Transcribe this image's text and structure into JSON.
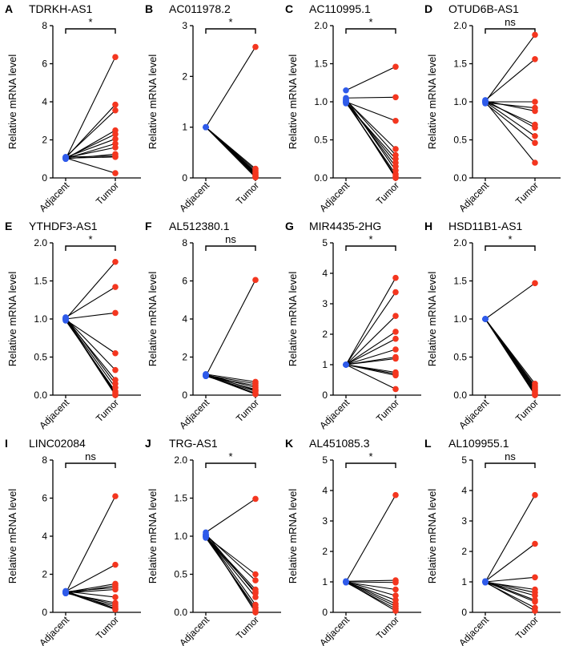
{
  "colors": {
    "adjacent": "#2f5bea",
    "tumor": "#f4361f",
    "line": "#000000"
  },
  "chart_data": [
    {
      "type": "scatter",
      "letter": "A",
      "title": "TDRKH-AS1",
      "ylabel": "Relative mRNA level",
      "categories": [
        "Adjacent",
        "Tumor"
      ],
      "ylim": [
        0,
        8
      ],
      "yticks": [
        "0",
        "2",
        "4",
        "6",
        "8"
      ],
      "sig": "*",
      "adjacent": [
        1.0,
        1.05,
        1.1,
        1.0,
        1.05,
        1.08,
        1.02,
        1.06,
        1.0,
        1.1,
        1.04,
        1.05
      ],
      "tumor": [
        6.35,
        3.85,
        3.55,
        2.5,
        2.3,
        2.05,
        1.8,
        1.6,
        1.25,
        1.15,
        1.1,
        0.25
      ]
    },
    {
      "type": "scatter",
      "letter": "B",
      "title": "AC011978.2",
      "ylabel": "Relative mRNA level",
      "categories": [
        "Adjacent",
        "Tumor"
      ],
      "ylim": [
        0,
        3
      ],
      "yticks": [
        "0",
        "1",
        "2",
        "3"
      ],
      "sig": "*",
      "adjacent": [
        1.0,
        1.0,
        1.0,
        1.0,
        1.0,
        1.0,
        1.0,
        1.0,
        1.0,
        1.0
      ],
      "tumor": [
        2.58,
        0.18,
        0.15,
        0.12,
        0.1,
        0.08,
        0.06,
        0.04,
        0.02,
        0.01
      ]
    },
    {
      "type": "scatter",
      "letter": "C",
      "title": "AC110995.1",
      "ylabel": "Relative mRNA level",
      "categories": [
        "Adjacent",
        "Tumor"
      ],
      "ylim": [
        0,
        2.0
      ],
      "yticks": [
        "0.0",
        "0.5",
        "1.0",
        "1.5",
        "2.0"
      ],
      "sig": "*",
      "adjacent": [
        1.15,
        1.05,
        1.0,
        1.02,
        1.03,
        0.98,
        1.0,
        1.01,
        1.04,
        0.99,
        1.0,
        1.02
      ],
      "tumor": [
        1.46,
        1.06,
        0.75,
        0.38,
        0.3,
        0.25,
        0.2,
        0.15,
        0.1,
        0.05,
        0.02,
        0.0
      ]
    },
    {
      "type": "scatter",
      "letter": "D",
      "title": "OTUD6B-AS1",
      "ylabel": "Relative mRNA level",
      "categories": [
        "Adjacent",
        "Tumor"
      ],
      "ylim": [
        0,
        2.0
      ],
      "yticks": [
        "0.0",
        "0.5",
        "1.0",
        "1.5",
        "2.0"
      ],
      "sig": "ns",
      "adjacent": [
        1.0,
        1.02,
        1.0,
        0.99,
        1.01,
        1.0,
        1.02,
        1.0,
        0.98,
        1.0
      ],
      "tumor": [
        1.88,
        1.56,
        1.0,
        0.92,
        0.88,
        0.7,
        0.66,
        0.55,
        0.46,
        0.2
      ]
    },
    {
      "type": "scatter",
      "letter": "E",
      "title": "YTHDF3-AS1",
      "ylabel": "Relative mRNA level",
      "categories": [
        "Adjacent",
        "Tumor"
      ],
      "ylim": [
        0,
        2.0
      ],
      "yticks": [
        "0.0",
        "0.5",
        "1.0",
        "1.5",
        "2.0"
      ],
      "sig": "*",
      "adjacent": [
        1.0,
        1.02,
        1.0,
        0.99,
        1.01,
        1.0,
        1.02,
        1.0,
        0.98,
        1.0,
        1.01,
        1.0
      ],
      "tumor": [
        1.75,
        1.42,
        1.08,
        0.55,
        0.33,
        0.2,
        0.15,
        0.1,
        0.05,
        0.03,
        0.01,
        0.0
      ]
    },
    {
      "type": "scatter",
      "letter": "F",
      "title": "AL512380.1",
      "ylabel": "Relative mRNA level",
      "categories": [
        "Adjacent",
        "Tumor"
      ],
      "ylim": [
        0,
        8
      ],
      "yticks": [
        "0",
        "2",
        "4",
        "6",
        "8"
      ],
      "sig": "ns",
      "adjacent": [
        1.0,
        1.1,
        1.05,
        1.0,
        1.08,
        1.02,
        1.1,
        1.0,
        1.05,
        1.03
      ],
      "tumor": [
        6.05,
        0.7,
        0.6,
        0.5,
        0.4,
        0.3,
        0.25,
        0.2,
        0.1,
        0.05
      ]
    },
    {
      "type": "scatter",
      "letter": "G",
      "title": "MIR4435-2HG",
      "ylabel": "Relative mRNA level",
      "categories": [
        "Adjacent",
        "Tumor"
      ],
      "ylim": [
        0,
        5
      ],
      "yticks": [
        "0",
        "1",
        "2",
        "3",
        "4",
        "5"
      ],
      "sig": "*",
      "adjacent": [
        1.0,
        1.0,
        1.0,
        1.0,
        1.0,
        1.0,
        1.0,
        1.0,
        1.0,
        1.0,
        1.0,
        1.0
      ],
      "tumor": [
        3.85,
        3.38,
        2.6,
        2.08,
        1.85,
        1.5,
        1.25,
        1.2,
        0.75,
        0.7,
        0.65,
        0.2
      ]
    },
    {
      "type": "scatter",
      "letter": "H",
      "title": "HSD11B1-AS1",
      "ylabel": "Relative mRNA level",
      "categories": [
        "Adjacent",
        "Tumor"
      ],
      "ylim": [
        0,
        2.0
      ],
      "yticks": [
        "0.0",
        "0.5",
        "1.0",
        "1.5",
        "2.0"
      ],
      "sig": "*",
      "adjacent": [
        1.0,
        1.0,
        1.0,
        1.0,
        1.0,
        1.0,
        1.0,
        1.0,
        1.0,
        1.0
      ],
      "tumor": [
        1.47,
        0.15,
        0.12,
        0.1,
        0.08,
        0.06,
        0.04,
        0.02,
        0.01,
        0.0
      ]
    },
    {
      "type": "scatter",
      "letter": "I",
      "title": "LINC02084",
      "ylabel": "Relative mRNA level",
      "categories": [
        "Adjacent",
        "Tumor"
      ],
      "ylim": [
        0,
        8
      ],
      "yticks": [
        "0",
        "2",
        "4",
        "6",
        "8"
      ],
      "sig": "ns",
      "adjacent": [
        1.0,
        1.1,
        1.05,
        1.0,
        1.08,
        1.02,
        1.1,
        1.0,
        1.05,
        1.03,
        1.12,
        1.06
      ],
      "tumor": [
        6.1,
        2.5,
        1.5,
        1.4,
        1.3,
        1.2,
        0.8,
        0.5,
        0.4,
        0.3,
        0.2,
        0.15
      ]
    },
    {
      "type": "scatter",
      "letter": "J",
      "title": "TRG-AS1",
      "ylabel": "Relative mRNA level",
      "categories": [
        "Adjacent",
        "Tumor"
      ],
      "ylim": [
        0,
        2.0
      ],
      "yticks": [
        "0.0",
        "0.5",
        "1.0",
        "1.5",
        "2.0"
      ],
      "sig": "*",
      "adjacent": [
        1.05,
        1.0,
        1.02,
        1.0,
        0.99,
        1.03,
        1.0,
        1.01,
        0.98,
        1.0,
        1.02
      ],
      "tumor": [
        1.49,
        0.5,
        0.42,
        0.3,
        0.27,
        0.25,
        0.2,
        0.1,
        0.06,
        0.03,
        0.0
      ]
    },
    {
      "type": "scatter",
      "letter": "K",
      "title": "AL451085.3",
      "ylabel": "Relative mRNA level",
      "categories": [
        "Adjacent",
        "Tumor"
      ],
      "ylim": [
        0,
        5
      ],
      "yticks": [
        "0",
        "1",
        "2",
        "3",
        "4",
        "5"
      ],
      "sig": "*",
      "adjacent": [
        1.0,
        1.02,
        1.0,
        0.99,
        1.01,
        1.0,
        1.02,
        1.0,
        0.98,
        1.0
      ],
      "tumor": [
        3.85,
        1.05,
        0.98,
        0.75,
        0.55,
        0.4,
        0.28,
        0.2,
        0.12,
        0.05
      ]
    },
    {
      "type": "scatter",
      "letter": "L",
      "title": "AL109955.1",
      "ylabel": "Relative mRNA level",
      "categories": [
        "Adjacent",
        "Tumor"
      ],
      "ylim": [
        0,
        5
      ],
      "yticks": [
        "0",
        "1",
        "2",
        "3",
        "4",
        "5"
      ],
      "sig": "ns",
      "adjacent": [
        1.0,
        1.02,
        1.0,
        0.99,
        1.01,
        1.0,
        1.02,
        1.0,
        0.98,
        1.0
      ],
      "tumor": [
        3.85,
        2.25,
        1.15,
        0.75,
        0.65,
        0.55,
        0.4,
        0.35,
        0.15,
        0.05
      ]
    }
  ]
}
